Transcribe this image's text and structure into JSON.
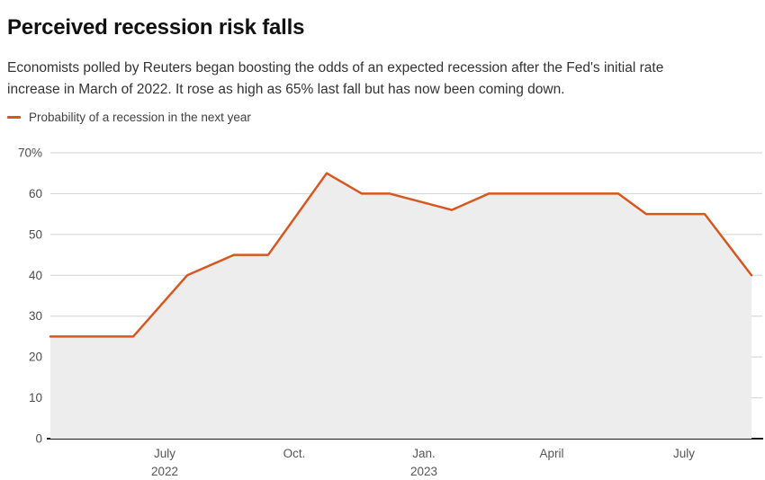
{
  "header": {
    "title": "Perceived recession risk falls",
    "subtitle_line1": "Economists polled by Reuters began boosting the odds of an expected recession after the Fed's initial rate",
    "subtitle_line2": "increase in March of 2022. It rose as high as 65% last fall but has now been coming down."
  },
  "legend": {
    "label": "Probability of a recession in the next year"
  },
  "chart_data": {
    "type": "area",
    "title": "Probability of a recession in the next year",
    "xlabel": "",
    "ylabel": "",
    "ylim": [
      0,
      70
    ],
    "grid": true,
    "legend_position": "top-left",
    "y_ticks": [
      {
        "value": 70,
        "label": "70%"
      },
      {
        "value": 60,
        "label": "60"
      },
      {
        "value": 50,
        "label": "50"
      },
      {
        "value": 40,
        "label": "40"
      },
      {
        "value": 30,
        "label": "30"
      },
      {
        "value": 20,
        "label": "20"
      },
      {
        "value": 10,
        "label": "10"
      },
      {
        "value": 0,
        "label": "0"
      }
    ],
    "x_ticks": [
      {
        "x": 183,
        "line1": "July",
        "line2": "2022"
      },
      {
        "x": 327,
        "line1": "Oct.",
        "line2": ""
      },
      {
        "x": 471,
        "line1": "Jan.",
        "line2": "2023"
      },
      {
        "x": 613,
        "line1": "April",
        "line2": ""
      },
      {
        "x": 760,
        "line1": "July",
        "line2": ""
      }
    ],
    "points": [
      {
        "date": "mid-Apr 2022",
        "value": 25,
        "x": 56
      },
      {
        "date": "early Jun 2022",
        "value": 25,
        "x": 148
      },
      {
        "date": "mid-Jul 2022",
        "value": 40,
        "x": 208
      },
      {
        "date": "mid-Aug 2022",
        "value": 45,
        "x": 260
      },
      {
        "date": "mid-Sep 2022",
        "value": 45,
        "x": 298
      },
      {
        "date": "late Oct 2022",
        "value": 65,
        "x": 363
      },
      {
        "date": "mid-Nov 2022",
        "value": 60,
        "x": 402
      },
      {
        "date": "early Dec 2022",
        "value": 60,
        "x": 433
      },
      {
        "date": "late Jan 2023",
        "value": 56,
        "x": 502
      },
      {
        "date": "mid-Feb 2023",
        "value": 60,
        "x": 543
      },
      {
        "date": "Apr 2023",
        "value": 60,
        "x": 614
      },
      {
        "date": "mid-May 2023",
        "value": 60,
        "x": 687
      },
      {
        "date": "early Jun 2023",
        "value": 55,
        "x": 718
      },
      {
        "date": "mid-Jul 2023",
        "value": 55,
        "x": 783
      },
      {
        "date": "mid-Aug 2023",
        "value": 40,
        "x": 835
      }
    ],
    "colors": {
      "line": "#d4581f",
      "area": "#ededed",
      "grid": "#d2d2d2",
      "baseline": "#1a1a1a",
      "y_tick_text": "#4d4d4d",
      "x_tick_text": "#555555"
    }
  }
}
